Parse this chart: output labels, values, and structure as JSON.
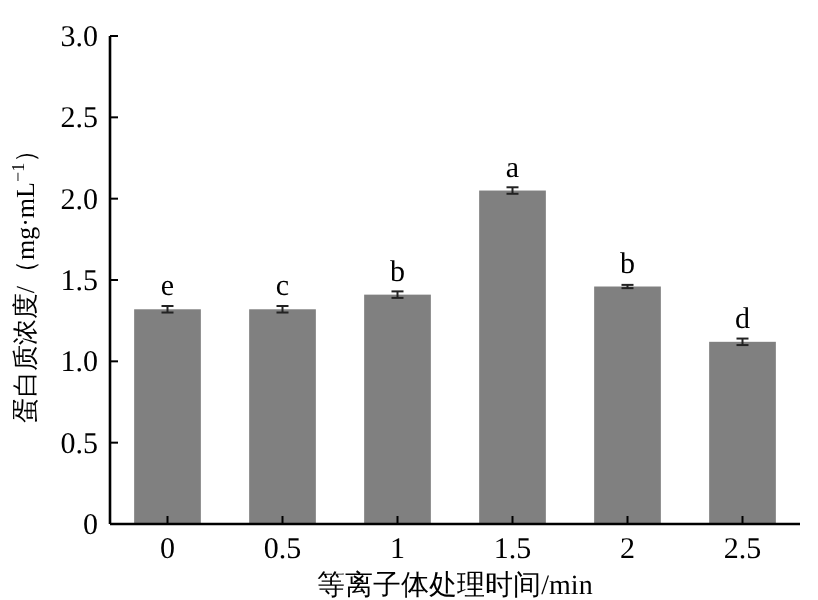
{
  "chart_data": {
    "type": "bar",
    "xlabel": "等离子体处理时间/min",
    "ylabel": "蛋白质浓度/（mg·mL$^{−1}$）",
    "categories": [
      "0",
      "0.5",
      "1",
      "1.5",
      "2",
      "2.5"
    ],
    "values": [
      1.32,
      1.32,
      1.41,
      2.05,
      1.46,
      1.12
    ],
    "errors": [
      0.02,
      0.02,
      0.02,
      0.02,
      0.01,
      0.02
    ],
    "color": "#808080",
    "ylim": [
      0,
      3.0
    ],
    "yticks": [
      0,
      {
        "value": 0.5,
        "label": "0.5"
      },
      {
        "value": 1,
        "label": "1.0"
      },
      {
        "value": 1.5,
        "label": "1.5"
      },
      {
        "value": 2,
        "label": "2.0"
      },
      {
        "value": 2.5,
        "label": "2.5"
      },
      {
        "value": 3,
        "label": "3.0"
      }
    ],
    "grid": false,
    "annotations": [
      {
        "text": "e",
        "x": "0",
        "y": 1.32
      },
      {
        "text": "c",
        "x": "0.5",
        "y": 1.32
      },
      {
        "text": "b",
        "x": "1",
        "y": 1.41
      },
      {
        "text": "a",
        "x": "1.5",
        "y": 2.05
      },
      {
        "text": "b",
        "x": "2",
        "y": 1.46
      },
      {
        "text": "d",
        "x": "2.5",
        "y": 1.12
      }
    ]
  }
}
